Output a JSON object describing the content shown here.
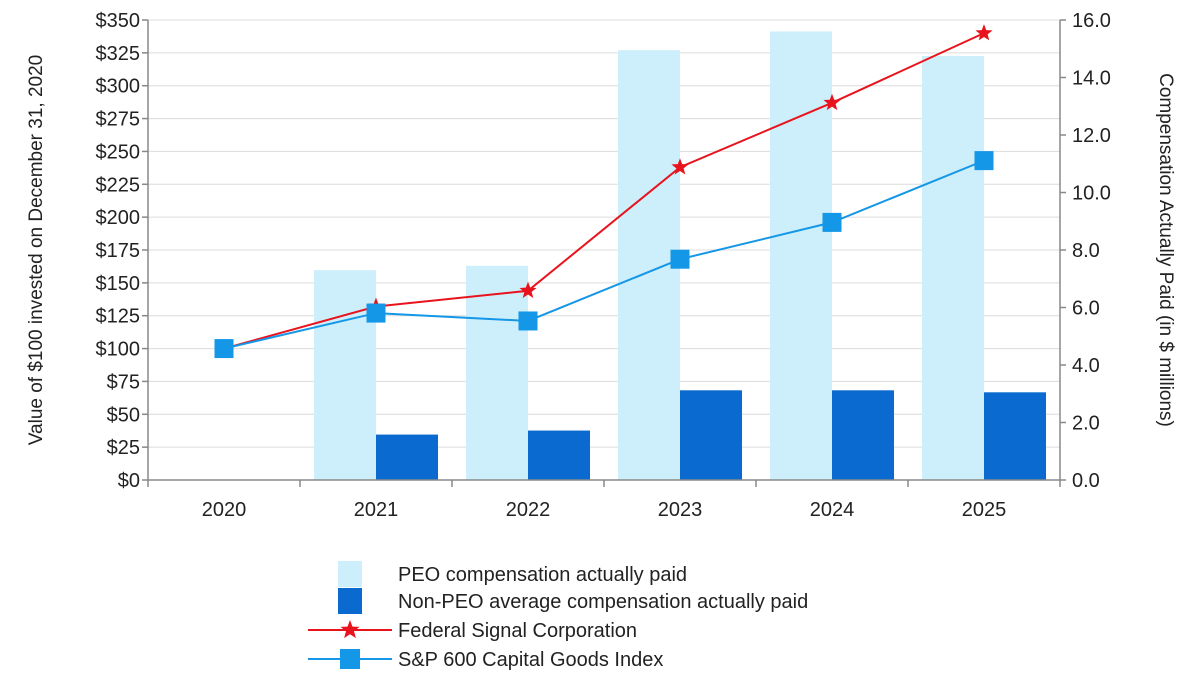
{
  "chart_data": {
    "type": "bar",
    "title": "",
    "categories": [
      "2020",
      "2021",
      "2022",
      "2023",
      "2024",
      "2025"
    ],
    "left_axis": {
      "label": "Value of $100 invested on December 31, 2020",
      "range": [
        0,
        350
      ],
      "step": 25,
      "ticks": [
        "$0",
        "$25",
        "$50",
        "$75",
        "$100",
        "$125",
        "$150",
        "$175",
        "$200",
        "$225",
        "$250",
        "$275",
        "$300",
        "$325",
        "$350"
      ]
    },
    "right_axis": {
      "label": "Compensation Actually Paid (in $ millions)",
      "range": [
        0,
        16
      ],
      "step": 2,
      "ticks": [
        "0.0",
        "2.0",
        "4.0",
        "6.0",
        "8.0",
        "10.0",
        "12.0",
        "14.0",
        "16.0"
      ]
    },
    "bar_series": [
      {
        "name": "PEO compensation actually paid",
        "axis": "right",
        "color": "#cdeefb",
        "values": [
          0,
          7.3,
          7.45,
          14.95,
          15.6,
          14.75
        ]
      },
      {
        "name": "Non-PEO average compensation actually paid",
        "axis": "right",
        "color": "#0a6ad0",
        "values": [
          0,
          1.58,
          1.72,
          3.12,
          3.12,
          3.05
        ]
      }
    ],
    "line_series": [
      {
        "name": "Federal Signal Corporation",
        "axis": "left",
        "color": "#e8131c",
        "marker": "star",
        "values": [
          100,
          132,
          144,
          238,
          287,
          340
        ]
      },
      {
        "name": "S&P 600 Capital Goods Index",
        "axis": "left",
        "color": "#1497e6",
        "marker": "square",
        "values": [
          100,
          127,
          121,
          168,
          196,
          243
        ]
      }
    ],
    "grid": true,
    "legend_position": "bottom-center"
  }
}
